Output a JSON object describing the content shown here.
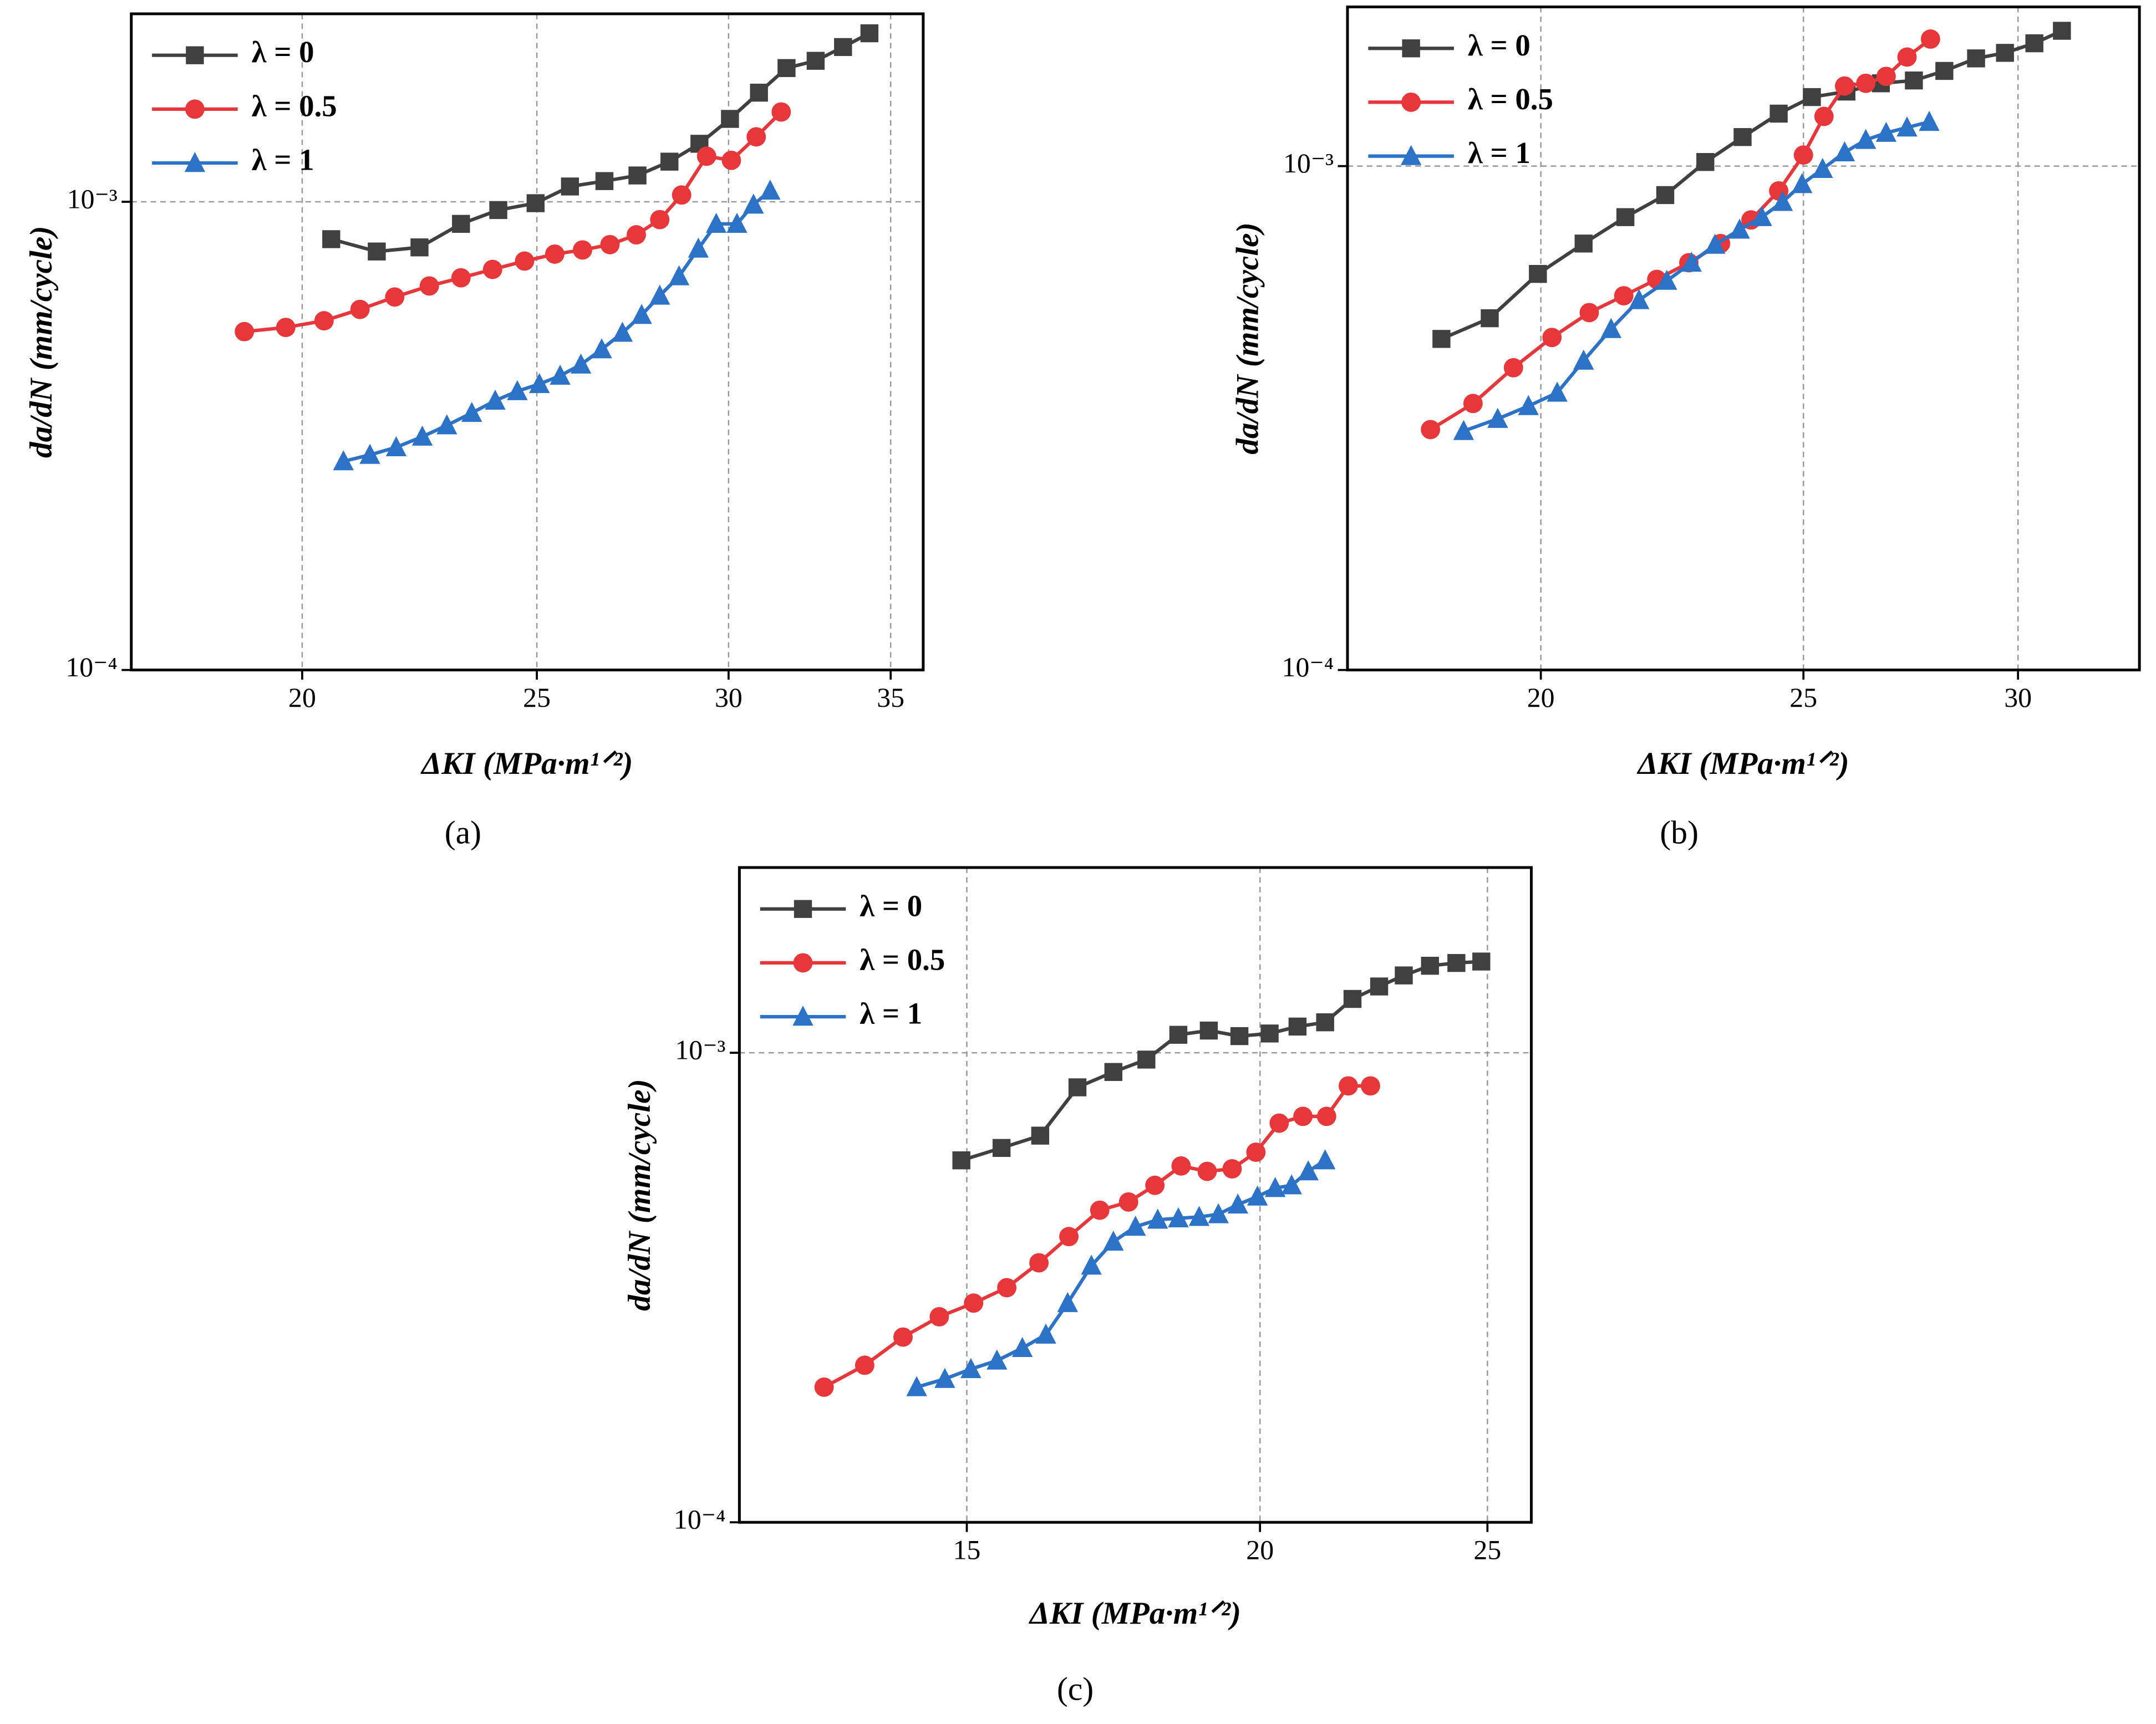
{
  "chart_data": [
    {
      "type": "line",
      "caption": "(a)",
      "xlabel": "ΔKI (MPa·m¹ᐟ²)",
      "ylabel": "da/dN (mm/cycle)",
      "xscale": "log",
      "yscale": "log",
      "grid": true,
      "legend": "upper left",
      "xlim": [
        17.0,
        36.1
      ],
      "xticks": [
        20,
        25,
        30,
        35
      ],
      "ylim": [
        0.0001,
        0.00252
      ],
      "yticks": [
        {
          "value": 0.0001,
          "label": "10⁻⁴"
        },
        {
          "value": 0.001,
          "label": "10⁻³"
        }
      ],
      "series": [
        {
          "name": "λ = 0",
          "color": "#404040",
          "marker": "square",
          "x": [
            20.56,
            21.47,
            22.36,
            23.26,
            24.1,
            24.97,
            25.8,
            26.66,
            27.51,
            28.36,
            29.18,
            30.04,
            30.88,
            31.7,
            32.59,
            33.45,
            34.3
          ],
          "values": [
            0.000832,
            0.000783,
            0.000799,
            0.000897,
            0.00096,
            0.000993,
            0.001078,
            0.001107,
            0.001138,
            0.001218,
            0.00133,
            0.001503,
            0.00171,
            0.00193,
            0.002,
            0.00214,
            0.00229
          ]
        },
        {
          "name": "λ = 0.5",
          "color": "#e8373a",
          "marker": "circle",
          "x": [
            18.93,
            19.69,
            20.42,
            21.13,
            21.84,
            22.57,
            23.26,
            23.97,
            24.71,
            25.43,
            26.11,
            26.8,
            27.48,
            28.1,
            28.69,
            29.38,
            30.08,
            30.8,
            31.54
          ],
          "values": [
            0.000528,
            0.000539,
            0.000557,
            0.000589,
            0.000626,
            0.000661,
            0.000688,
            0.000717,
            0.000747,
            0.000773,
            0.000789,
            0.00081,
            0.00085,
            0.000916,
            0.001034,
            0.001251,
            0.001226,
            0.001376,
            0.001555
          ]
        },
        {
          "name": "λ = 1",
          "color": "#2c72c7",
          "marker": "triangle",
          "x": [
            20.8,
            21.33,
            21.87,
            22.42,
            22.95,
            23.5,
            24.03,
            24.54,
            25.06,
            25.56,
            26.07,
            26.59,
            27.12,
            27.62,
            28.1,
            28.62,
            29.15,
            29.65,
            30.24,
            30.72,
            31.21
          ],
          "values": [
            0.000279,
            0.000288,
            0.000299,
            0.000315,
            0.000333,
            0.000354,
            0.000376,
            0.000394,
            0.000408,
            0.000425,
            0.000449,
            0.000484,
            0.000525,
            0.000573,
            0.00063,
            0.000693,
            0.000794,
            0.000897,
            0.000897,
            0.000986,
            0.001056
          ]
        }
      ]
    },
    {
      "type": "line",
      "caption": "(b)",
      "xlabel": "ΔKI (MPa·m¹ᐟ²)",
      "ylabel": "da/dN (mm/cycle)",
      "xscale": "log",
      "yscale": "log",
      "grid": true,
      "legend": "upper left",
      "xlim": [
        16.97,
        33.26
      ],
      "xticks": [
        20,
        25,
        30
      ],
      "ylim": [
        0.0001,
        0.00207
      ],
      "yticks": [
        {
          "value": 0.0001,
          "label": "10⁻⁴"
        },
        {
          "value": 0.001,
          "label": "10⁻³"
        }
      ],
      "series": [
        {
          "name": "λ = 0",
          "color": "#404040",
          "marker": "square",
          "x": [
            18.38,
            19.15,
            19.95,
            20.74,
            21.49,
            22.23,
            23.0,
            23.74,
            24.48,
            25.18,
            25.93,
            26.7,
            27.46,
            28.18,
            28.95,
            29.67,
            30.42,
            31.14
          ],
          "values": [
            0.000454,
            0.000499,
            0.000611,
            0.000702,
            0.000792,
            0.000876,
            0.001019,
            0.001142,
            0.001271,
            0.001371,
            0.001406,
            0.00146,
            0.001479,
            0.001545,
            0.001636,
            0.001678,
            0.001753,
            0.001856
          ]
        },
        {
          "name": "λ = 0.5",
          "color": "#e8373a",
          "marker": "circle",
          "x": [
            18.21,
            18.88,
            19.54,
            20.19,
            20.84,
            21.46,
            22.07,
            22.68,
            23.3,
            23.91,
            24.48,
            25.0,
            25.44,
            25.89,
            26.36,
            26.82,
            27.3,
            27.85
          ],
          "values": [
            0.0003,
            0.000338,
            0.000398,
            0.000457,
            0.000512,
            0.000553,
            0.000596,
            0.000643,
            0.000702,
            0.000782,
            0.000893,
            0.001052,
            0.001255,
            0.001442,
            0.00146,
            0.001507,
            0.001646,
            0.001787
          ]
        },
        {
          "name": "λ = 1",
          "color": "#2c72c7",
          "marker": "triangle",
          "x": [
            18.73,
            19.28,
            19.79,
            20.28,
            20.74,
            21.23,
            21.74,
            22.26,
            22.73,
            23.19,
            23.68,
            24.13,
            24.56,
            24.97,
            25.41,
            25.89,
            26.36,
            26.82,
            27.3,
            27.82
          ],
          "values": [
            0.000298,
            0.000315,
            0.000334,
            0.000355,
            0.000411,
            0.000475,
            0.000542,
            0.000592,
            0.000643,
            0.000698,
            0.000748,
            0.000792,
            0.000849,
            0.000921,
            0.000987,
            0.001065,
            0.001127,
            0.001164,
            0.001193,
            0.001224
          ]
        }
      ]
    },
    {
      "type": "line",
      "caption": "(c)",
      "xlabel": "ΔKI (MPa·m¹ᐟ²)",
      "ylabel": "da/dN (mm/cycle)",
      "xscale": "log",
      "yscale": "log",
      "grid": true,
      "legend": "upper left",
      "xlim": [
        12.0,
        26.1
      ],
      "xticks": [
        15,
        20,
        25
      ],
      "ylim": [
        0.0001,
        0.00248
      ],
      "yticks": [
        {
          "value": 0.0001,
          "label": "10⁻⁴"
        },
        {
          "value": 0.001,
          "label": "10⁻³"
        }
      ],
      "series": [
        {
          "name": "λ = 0",
          "color": "#404040",
          "marker": "square",
          "x": [
            14.92,
            15.52,
            16.12,
            16.72,
            17.32,
            17.89,
            18.46,
            19.02,
            19.6,
            20.19,
            20.75,
            21.32,
            21.9,
            22.48,
            23.03,
            23.63,
            24.25,
            24.85
          ],
          "values": [
            0.00059,
            0.000627,
            0.000666,
            0.000844,
            0.00091,
            0.000967,
            0.001092,
            0.001115,
            0.001085,
            0.001099,
            0.001137,
            0.001161,
            0.001302,
            0.001384,
            0.001461,
            0.001532,
            0.001553,
            0.001564
          ]
        },
        {
          "name": "λ = 0.5",
          "color": "#e8373a",
          "marker": "circle",
          "x": [
            13.04,
            13.57,
            14.09,
            14.6,
            15.1,
            15.6,
            16.1,
            16.58,
            17.09,
            17.58,
            18.04,
            18.51,
            18.99,
            19.46,
            19.92,
            20.38,
            20.86,
            21.35,
            21.81,
            22.29
          ],
          "values": [
            0.000194,
            0.000216,
            0.000248,
            0.000274,
            0.000293,
            0.000316,
            0.000357,
            0.000406,
            0.000462,
            0.000481,
            0.000522,
            0.000574,
            0.000559,
            0.000566,
            0.000614,
            0.000708,
            0.000732,
            0.000732,
            0.00085,
            0.00085
          ]
        },
        {
          "name": "λ = 1",
          "color": "#2c72c7",
          "marker": "triangle",
          "x": [
            14.28,
            14.68,
            15.06,
            15.45,
            15.84,
            16.21,
            16.56,
            16.95,
            17.32,
            17.7,
            18.09,
            18.46,
            18.84,
            19.2,
            19.57,
            19.95,
            20.3,
            20.63,
            20.97,
            21.32
          ],
          "values": [
            0.000194,
            0.000202,
            0.000212,
            0.000221,
            0.000235,
            0.000251,
            0.000293,
            0.000352,
            0.000396,
            0.000426,
            0.000441,
            0.000444,
            0.000447,
            0.000453,
            0.000475,
            0.000494,
            0.000515,
            0.000522,
            0.000559,
            0.00059
          ]
        }
      ]
    }
  ]
}
